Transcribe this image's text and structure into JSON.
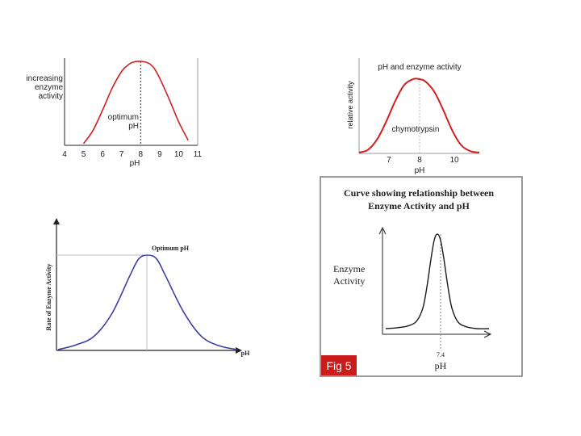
{
  "chart_data": [
    {
      "type": "line",
      "ylabel_lines": [
        "increasing",
        "enzyme",
        "activity"
      ],
      "xlabel": "pH",
      "x_ticks": [
        "4",
        "5",
        "6",
        "7",
        "8",
        "9",
        "10",
        "11"
      ],
      "xlim": [
        4,
        11
      ],
      "peak_x": 8,
      "annotation_lines": [
        "optimum",
        "pH"
      ],
      "line_color": "#d21f1f",
      "curve": {
        "x": [
          5,
          5.5,
          6,
          6.5,
          7,
          7.3,
          7.6,
          8,
          8.4,
          8.7,
          9,
          9.5,
          10,
          10.5
        ],
        "y": [
          0.02,
          0.18,
          0.42,
          0.68,
          0.88,
          0.95,
          0.99,
          1.0,
          0.98,
          0.92,
          0.8,
          0.55,
          0.28,
          0.06
        ]
      }
    },
    {
      "type": "line",
      "title": "pH and enzyme activity",
      "ylabel": "relative activity",
      "xlabel": "pH",
      "x_ticks": [
        "7",
        "8",
        "10"
      ],
      "series_label": "chymotrypsin",
      "line_color": "#d21f1f",
      "curve": {
        "x": [
          6.0,
          6.3,
          6.6,
          6.9,
          7.2,
          7.5,
          7.8,
          8.0,
          8.2,
          8.5,
          8.8,
          9.1,
          9.4,
          9.7,
          10.0
        ],
        "y": [
          0.0,
          0.04,
          0.18,
          0.42,
          0.7,
          0.92,
          1.0,
          1.0,
          0.97,
          0.83,
          0.58,
          0.3,
          0.1,
          0.02,
          0.0
        ]
      }
    },
    {
      "type": "line",
      "ylabel": "Rate of Enzyme Activity",
      "xlabel": "pH",
      "annotation": "Optimum pH",
      "line_color": "#3b3fa0",
      "curve": {
        "x": [
          0,
          0.1,
          0.2,
          0.3,
          0.4,
          0.45,
          0.5,
          0.55,
          0.6,
          0.7,
          0.8,
          0.9,
          1.0
        ],
        "y": [
          0.0,
          0.05,
          0.14,
          0.38,
          0.78,
          0.96,
          1.0,
          0.96,
          0.78,
          0.4,
          0.14,
          0.04,
          0.0
        ]
      }
    },
    {
      "type": "line",
      "title_lines": [
        "Curve showing relationship between",
        "Enzyme Activity and pH"
      ],
      "ylabel_lines": [
        "Enzyme",
        "Activity"
      ],
      "xlabel": "pH",
      "peak_label": "7.4",
      "badge": "Fig 5",
      "badge_color": "#cc1b1b",
      "line_color": "#1a1a1a",
      "curve": {
        "x": [
          0,
          0.12,
          0.22,
          0.3,
          0.36,
          0.4,
          0.44,
          0.47,
          0.5,
          0.53,
          0.56,
          0.6,
          0.64,
          0.7,
          0.78,
          0.88,
          1.0
        ],
        "y": [
          0.0,
          0.01,
          0.03,
          0.08,
          0.22,
          0.45,
          0.75,
          0.94,
          1.0,
          0.94,
          0.76,
          0.46,
          0.22,
          0.07,
          0.02,
          0.0,
          0.0
        ]
      }
    }
  ]
}
